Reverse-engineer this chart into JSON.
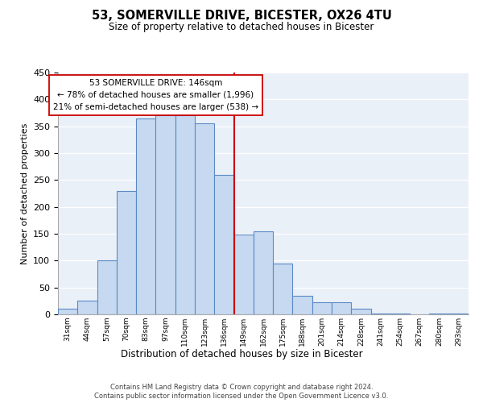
{
  "title": "53, SOMERVILLE DRIVE, BICESTER, OX26 4TU",
  "subtitle": "Size of property relative to detached houses in Bicester",
  "xlabel": "Distribution of detached houses by size in Bicester",
  "ylabel": "Number of detached properties",
  "bin_labels": [
    "31sqm",
    "44sqm",
    "57sqm",
    "70sqm",
    "83sqm",
    "97sqm",
    "110sqm",
    "123sqm",
    "136sqm",
    "149sqm",
    "162sqm",
    "175sqm",
    "188sqm",
    "201sqm",
    "214sqm",
    "228sqm",
    "241sqm",
    "254sqm",
    "267sqm",
    "280sqm",
    "293sqm"
  ],
  "bar_heights": [
    10,
    25,
    100,
    230,
    365,
    370,
    370,
    355,
    260,
    148,
    155,
    95,
    35,
    22,
    22,
    10,
    2,
    2,
    0,
    2,
    2
  ],
  "bar_color": "#c6d9f0",
  "bar_edge_color": "#5a8ac6",
  "vline_x_index": 8.5,
  "vline_color": "#cc0000",
  "annotation_title": "53 SOMERVILLE DRIVE: 146sqm",
  "annotation_line1": "← 78% of detached houses are smaller (1,996)",
  "annotation_line2": "21% of semi-detached houses are larger (538) →",
  "annotation_box_color": "#ffffff",
  "annotation_box_edge": "#cc0000",
  "ylim": [
    0,
    450
  ],
  "yticks": [
    0,
    50,
    100,
    150,
    200,
    250,
    300,
    350,
    400,
    450
  ],
  "footer1": "Contains HM Land Registry data © Crown copyright and database right 2024.",
  "footer2": "Contains public sector information licensed under the Open Government Licence v3.0.",
  "background_color": "#eaf0f8",
  "fig_background": "#ffffff"
}
